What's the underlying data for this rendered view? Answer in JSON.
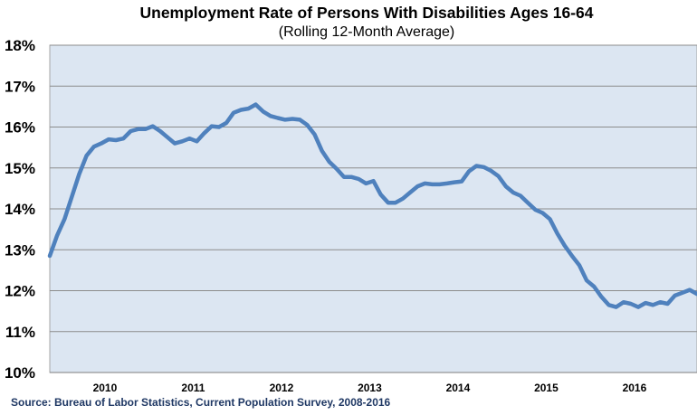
{
  "chart_data": {
    "type": "line",
    "title": "Unemployment Rate of Persons With Disabilities Ages 16-64",
    "subtitle": "(Rolling 12-Month Average)",
    "source": "Source: Bureau of Labor Statistics, Current Population Survey, 2008-2016",
    "xlabel": "",
    "ylabel": "",
    "ylim": [
      10,
      18
    ],
    "yticks": [
      10,
      11,
      12,
      13,
      14,
      15,
      16,
      17,
      18
    ],
    "ytick_labels": [
      "10%",
      "11%",
      "12%",
      "13%",
      "14%",
      "15%",
      "16%",
      "17%",
      "18%"
    ],
    "x_start": "2009-05",
    "x_end": "2016-09",
    "x_start_index": 0,
    "x_end_index": 88,
    "x_year_labels": [
      {
        "label": "2010",
        "index": 7.5
      },
      {
        "label": "2011",
        "index": 19.5
      },
      {
        "label": "2012",
        "index": 31.5
      },
      {
        "label": "2013",
        "index": 43.5
      },
      {
        "label": "2014",
        "index": 55.5
      },
      {
        "label": "2015",
        "index": 67.5
      },
      {
        "label": "2016",
        "index": 79.5
      }
    ],
    "grid": true,
    "legend": "none",
    "series": [
      {
        "name": "Unemployment Rate (rolling 12-month average)",
        "color": "#4f81bd",
        "x": [
          0,
          1,
          2,
          3,
          4,
          5,
          6,
          7,
          8,
          9,
          10,
          11,
          12,
          13,
          14,
          15,
          16,
          17,
          18,
          19,
          20,
          21,
          22,
          23,
          24,
          25,
          26,
          27,
          28,
          29,
          30,
          31,
          32,
          33,
          34,
          35,
          36,
          37,
          38,
          39,
          40,
          41,
          42,
          43,
          44,
          45,
          46,
          47,
          48,
          49,
          50,
          51,
          52,
          53,
          54,
          55,
          56,
          57,
          58,
          59,
          60,
          61,
          62,
          63,
          64,
          65,
          66,
          67,
          68,
          69,
          70,
          71,
          72,
          73,
          74,
          75,
          76,
          77,
          78,
          79,
          80,
          81,
          82,
          83,
          84,
          85,
          86,
          87,
          88
        ],
        "values": [
          12.85,
          13.35,
          13.75,
          14.3,
          14.85,
          15.3,
          15.52,
          15.6,
          15.7,
          15.68,
          15.72,
          15.9,
          15.95,
          15.95,
          16.02,
          15.9,
          15.75,
          15.6,
          15.65,
          15.72,
          15.65,
          15.85,
          16.02,
          16.0,
          16.1,
          16.35,
          16.42,
          16.45,
          16.55,
          16.38,
          16.27,
          16.22,
          16.18,
          16.2,
          16.18,
          16.05,
          15.82,
          15.42,
          15.15,
          14.98,
          14.78,
          14.78,
          14.73,
          14.62,
          14.68,
          14.35,
          14.15,
          14.15,
          14.25,
          14.4,
          14.55,
          14.62,
          14.6,
          14.6,
          14.62,
          14.65,
          14.67,
          14.92,
          15.05,
          15.02,
          14.93,
          14.8,
          14.55,
          14.4,
          14.32,
          14.15,
          13.98,
          13.9,
          13.75,
          13.4,
          13.1,
          12.85,
          12.62,
          12.25,
          12.1,
          11.85,
          11.65,
          11.6,
          11.72,
          11.68,
          11.6,
          11.7,
          11.65,
          11.72,
          11.68,
          11.88,
          11.95,
          12.02,
          11.92
        ]
      }
    ]
  }
}
